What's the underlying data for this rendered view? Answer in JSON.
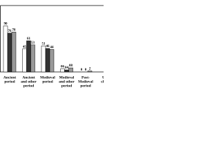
{
  "chart_data": {
    "type": "bar",
    "categories": [
      [
        "Ancient",
        "period"
      ],
      [
        "Ancient",
        "and other",
        "period"
      ],
      [
        "Medieval",
        "period"
      ],
      [
        "Medieval",
        "and other",
        "period"
      ],
      [
        "Post-",
        "Medieval",
        "period"
      ],
      [
        "Un",
        "chro"
      ]
    ],
    "series": [
      {
        "color": "#ffffff",
        "values": [
          90,
          45,
          51,
          6,
          0,
          null
        ],
        "value_labels": [
          "90",
          "45",
          "51",
          "06",
          "0",
          null
        ]
      },
      {
        "color": "#333333",
        "values": [
          76,
          61,
          46,
          4,
          0,
          null
        ],
        "value_labels": [
          "76",
          "61",
          "46",
          "04",
          "0",
          null
        ]
      },
      {
        "color": "#999999",
        "values": [
          78,
          53,
          44,
          8,
          2,
          null
        ],
        "value_labels": [
          "78",
          "53",
          "44",
          "08",
          "2",
          null
        ]
      }
    ],
    "ylim": [
      0,
      130
    ]
  }
}
